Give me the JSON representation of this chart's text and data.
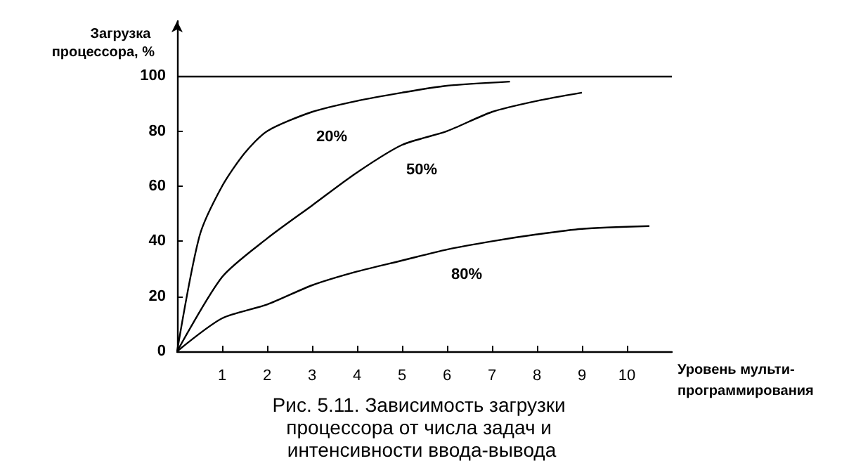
{
  "chart_data": {
    "type": "line",
    "title": "Рис. 5.11. Зависимость загрузки процессора от числа задач и интенсивности ввода-вывода",
    "xlabel": "Уровень мульти-программирования",
    "ylabel": "Загрузка процессора, %",
    "series": [
      {
        "name": "20%",
        "color": "#000000",
        "x": [
          0,
          0.5,
          1,
          1.5,
          2,
          3,
          4,
          5,
          6,
          7.4
        ],
        "values": [
          0,
          42,
          60,
          72,
          80,
          87,
          91,
          94,
          96.5,
          98
        ]
      },
      {
        "name": "50%",
        "color": "#000000",
        "x": [
          0,
          1,
          2,
          3,
          4,
          5,
          6,
          7,
          8,
          9
        ],
        "values": [
          0,
          27,
          41,
          53,
          65,
          75,
          80,
          87,
          91,
          94
        ]
      },
      {
        "name": "80%",
        "color": "#000000",
        "x": [
          0,
          1,
          2,
          3,
          4,
          5,
          6,
          7,
          8,
          9,
          10.5
        ],
        "values": [
          0,
          12,
          17,
          24,
          29,
          33,
          37,
          40,
          42.5,
          44.5,
          45.5
        ]
      }
    ],
    "ref_lines": [
      {
        "axis": "y",
        "value": 100,
        "color": "#000000"
      }
    ],
    "xlim": [
      0,
      11
    ],
    "ylim": [
      0,
      120
    ],
    "xticks": [
      1,
      2,
      3,
      4,
      5,
      6,
      7,
      8,
      9,
      10
    ],
    "yticks": [
      0,
      20,
      40,
      60,
      80,
      100
    ],
    "grid": false,
    "marker": "none",
    "line_style": "solid"
  }
}
